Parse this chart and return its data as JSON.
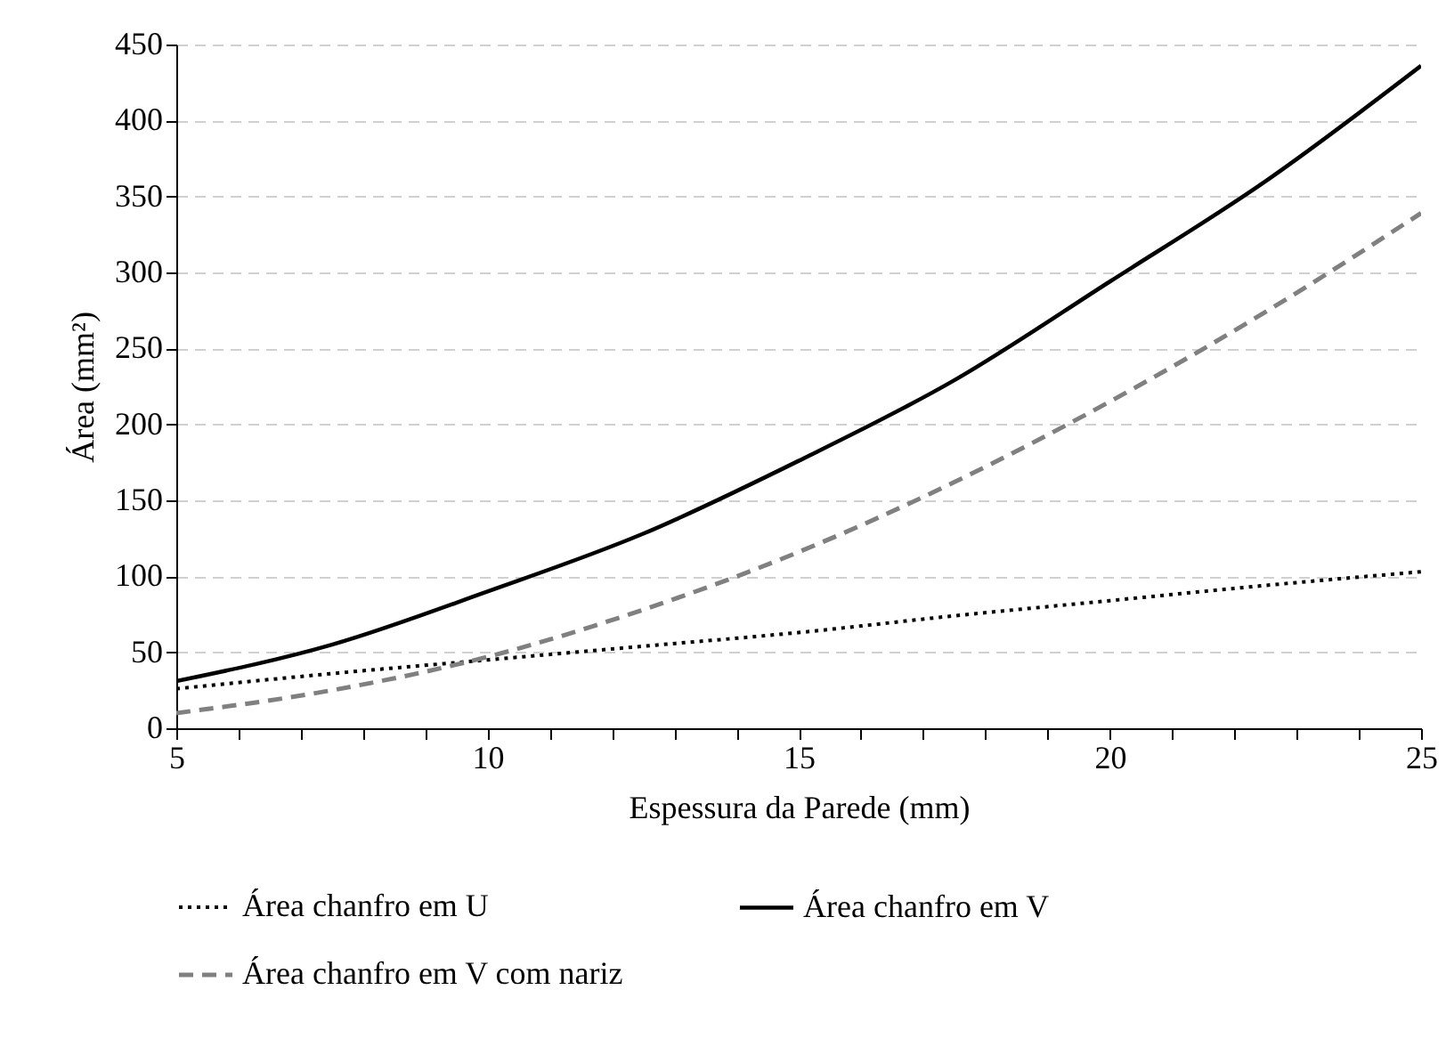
{
  "chart_data": {
    "type": "line",
    "xlabel": "Espessura da Parede (mm)",
    "ylabel": "Área (mm²)",
    "x": [
      5,
      7.5,
      10,
      12.5,
      15,
      17.5,
      20,
      22.5,
      25
    ],
    "series": [
      {
        "name": "Área chanfro em U",
        "color": "#000000",
        "line_style": "dotted",
        "values": [
          26,
          36,
          45,
          54,
          63,
          74,
          84,
          94,
          103
        ]
      },
      {
        "name": "Área chanfro em V",
        "color": "#000000",
        "line_style": "solid",
        "values": [
          31,
          55,
          90,
          128,
          176,
          229,
          294,
          360,
          436
        ]
      },
      {
        "name": "Área chanfro em V com nariz",
        "color": "#808080",
        "line_style": "dashed",
        "values": [
          10,
          25,
          47,
          78,
          116,
          162,
          215,
          274,
          339
        ]
      }
    ],
    "xlim": [
      5,
      25
    ],
    "ylim": [
      0,
      450
    ],
    "xticks": [
      5,
      {
        "value": 6,
        "label": null
      },
      {
        "value": 7,
        "label": null
      },
      {
        "value": 8,
        "label": null
      },
      {
        "value": 9,
        "label": null
      },
      10,
      {
        "value": 11,
        "label": null
      },
      {
        "value": 12,
        "label": null
      },
      {
        "value": 13,
        "label": null
      },
      {
        "value": 14,
        "label": null
      },
      15,
      {
        "value": 16,
        "label": null
      },
      {
        "value": 17,
        "label": null
      },
      {
        "value": 18,
        "label": null
      },
      {
        "value": 19,
        "label": null
      },
      20,
      {
        "value": 21,
        "label": null
      },
      {
        "value": 22,
        "label": null
      },
      {
        "value": 23,
        "label": null
      },
      {
        "value": 24,
        "label": null
      },
      25
    ],
    "yticks": [
      0,
      50,
      100,
      150,
      200,
      250,
      300,
      350,
      400,
      450
    ],
    "grid": "y",
    "legend": "bottom"
  }
}
